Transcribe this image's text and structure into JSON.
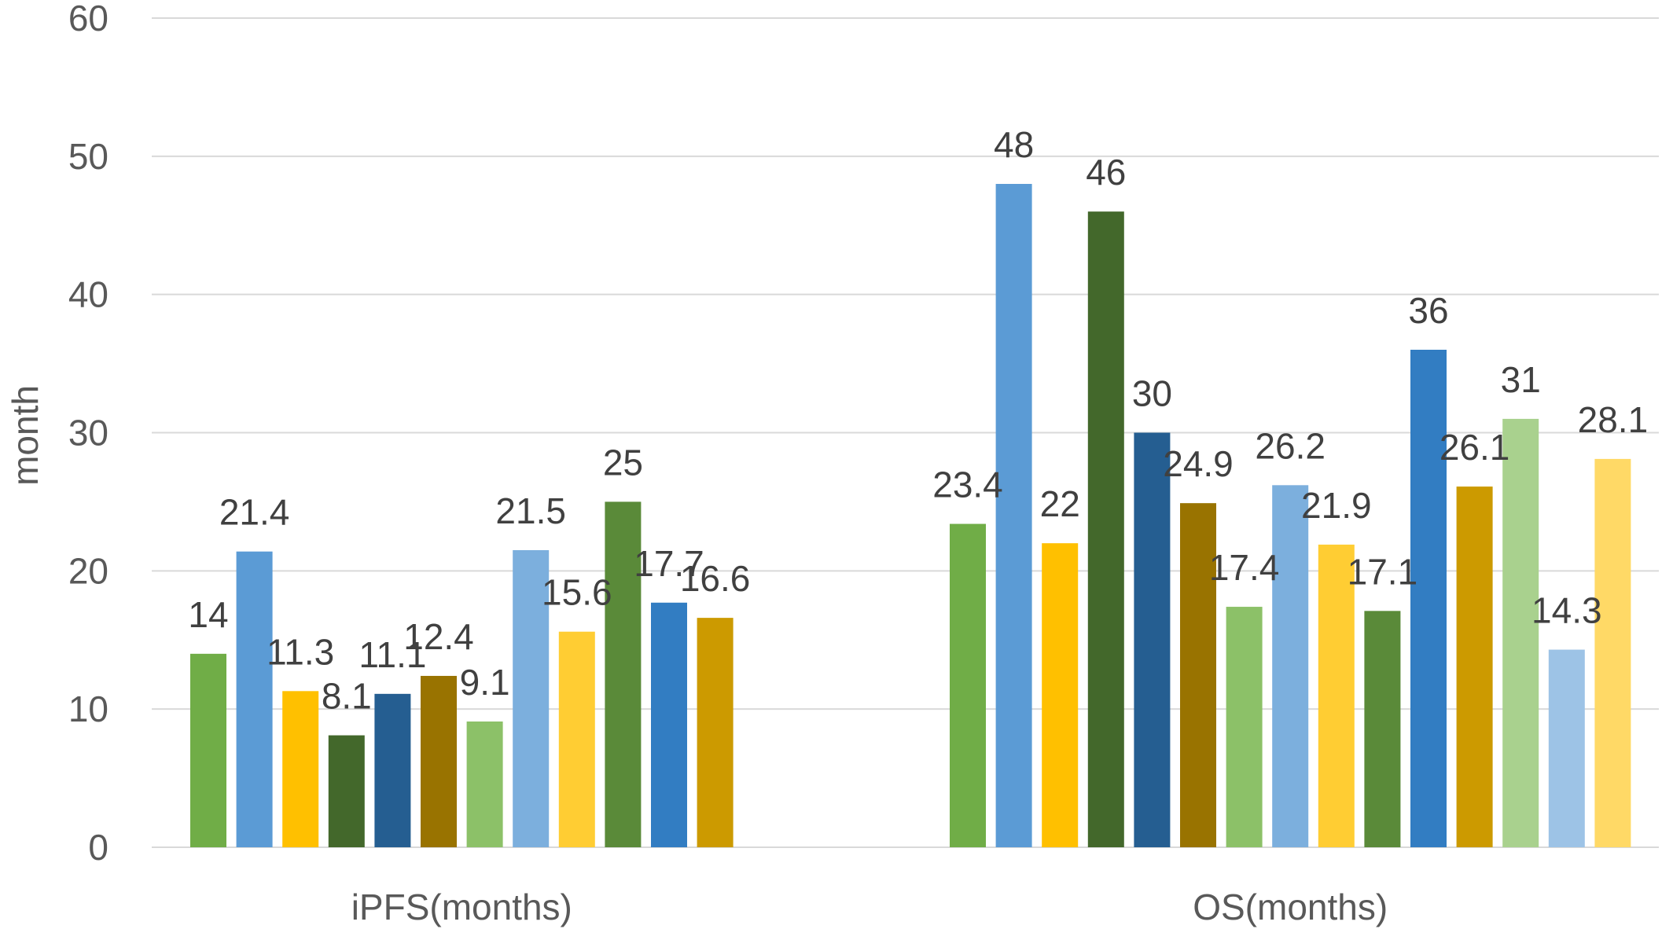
{
  "chart_data": {
    "type": "bar",
    "title": "",
    "xlabel": "",
    "ylabel": "month",
    "ylim": [
      0,
      60
    ],
    "yticks": [
      0,
      10,
      20,
      30,
      40,
      50,
      60
    ],
    "grid": true,
    "legend": "none",
    "groups": [
      {
        "category": "iPFS(months)",
        "values": [
          14,
          21.4,
          11.3,
          8.1,
          11.1,
          12.4,
          9.1,
          21.5,
          15.6,
          25,
          17.7,
          16.6
        ],
        "colors": [
          "#70ad47",
          "#5b9bd5",
          "#ffc000",
          "#43682b",
          "#255e91",
          "#997300",
          "#8cc168",
          "#7cafdd",
          "#ffcd33",
          "#5a8a39",
          "#327dc2",
          "#cc9a00"
        ]
      },
      {
        "category": "OS(months)",
        "values": [
          23.4,
          48,
          22,
          46,
          30,
          24.9,
          17.4,
          26.2,
          21.9,
          17.1,
          36,
          26.1,
          31,
          14.3,
          28.1
        ],
        "colors": [
          "#70ad47",
          "#5b9bd5",
          "#ffc000",
          "#43682b",
          "#255e91",
          "#997300",
          "#8cc168",
          "#7cafdd",
          "#ffcd33",
          "#5a8a39",
          "#327dc2",
          "#cc9a00",
          "#a9d18e",
          "#9dc3e6",
          "#ffd966"
        ]
      }
    ]
  }
}
